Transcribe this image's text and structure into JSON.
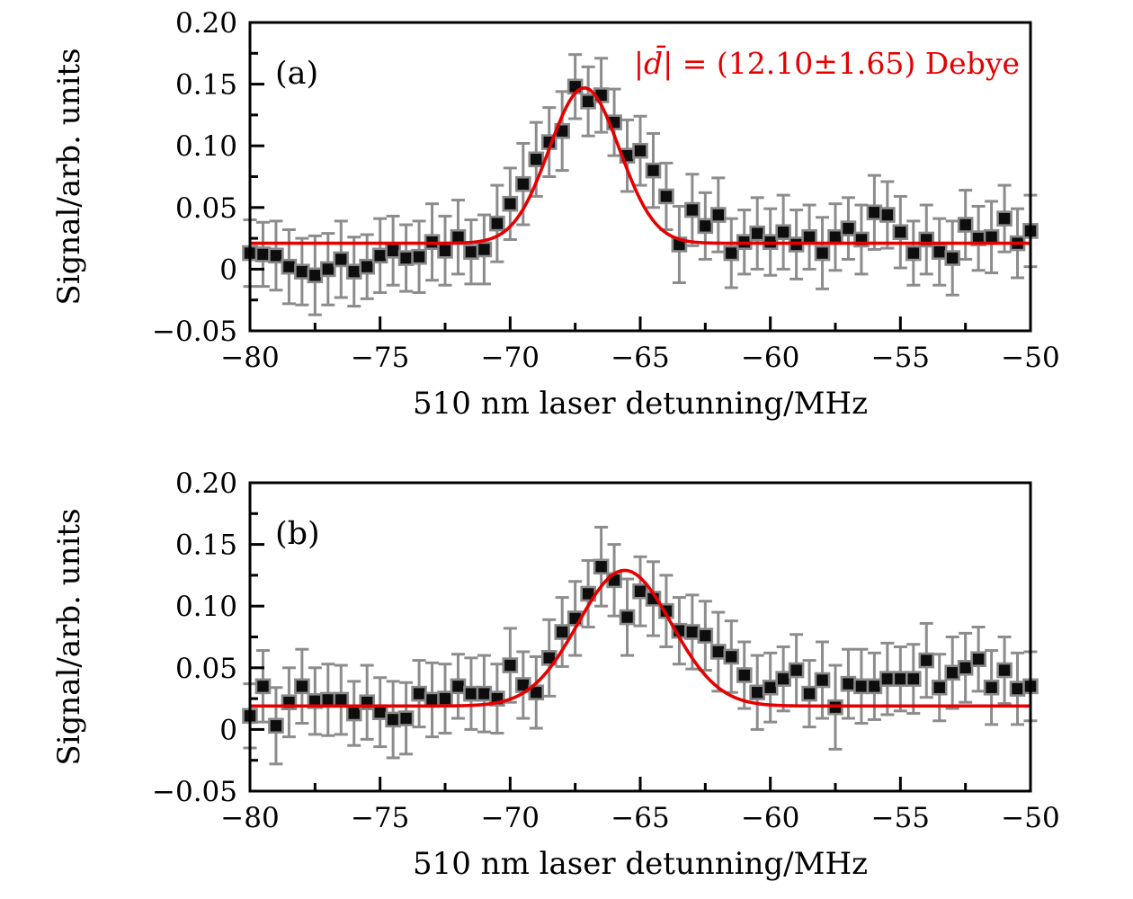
{
  "figure": {
    "background": "#ffffff",
    "colors": {
      "fit_red": "#e60000",
      "annotation_red": "#e60000",
      "marker_fill": "#0d0d0d",
      "marker_edge": "#8a8a8a",
      "error_bar": "#8c8c8c",
      "axis": "#000000",
      "tick_text": "#000000"
    }
  },
  "chart_data": [
    {
      "type": "scatter",
      "panel_key": "a",
      "panel_label": "(a)",
      "xlabel": "510 nm laser detunning/MHz",
      "ylabel": "Signal/arb. units",
      "xlim": [
        -80,
        -50
      ],
      "ylim": [
        -0.05,
        0.2
      ],
      "x_tick_values": [
        -80,
        -75,
        -70,
        -65,
        -60,
        -55,
        -50
      ],
      "x_tick_labels": [
        "−80",
        "−75",
        "−70",
        "−65",
        "−60",
        "−55",
        "−50"
      ],
      "x_minor_tick_values": [
        -77.5,
        -72.5,
        -67.5,
        -62.5,
        -57.5,
        -52.5
      ],
      "y_tick_values": [
        0.2,
        0.15,
        0.1,
        0.05,
        0,
        -0.05
      ],
      "y_tick_labels": [
        "0.20",
        "0.15",
        "0.10",
        "0.05",
        "0",
        "−0.05"
      ],
      "y_minor_tick_values": [
        0.175,
        0.125,
        0.075,
        0.025,
        -0.025
      ],
      "grid": false,
      "annotation": {
        "open": "|",
        "symbol": "d̄",
        "rest": "| = (12.10±1.65) Debye"
      },
      "fit": {
        "shape": "gaussian",
        "baseline": 0.021,
        "amplitude": 0.126,
        "center": -67.15,
        "sigma": 1.35
      },
      "series": {
        "name": "signal",
        "x": [
          -80,
          -79.5,
          -79,
          -78.5,
          -78,
          -77.5,
          -77,
          -76.5,
          -76,
          -75.5,
          -75,
          -74.5,
          -74,
          -73.5,
          -73,
          -72.5,
          -72,
          -71.5,
          -71,
          -70.5,
          -70,
          -69.5,
          -69,
          -68.5,
          -68,
          -67.5,
          -67,
          -66.5,
          -66,
          -65.5,
          -65,
          -64.5,
          -64,
          -63.5,
          -63,
          -62.5,
          -62,
          -61.5,
          -61,
          -60.5,
          -60,
          -59.5,
          -59,
          -58.5,
          -58,
          -57.5,
          -57,
          -56.5,
          -56,
          -55.5,
          -55,
          -54.5,
          -54,
          -53.5,
          -53,
          -52.5,
          -52,
          -51.5,
          -51,
          -50.5,
          -50
        ],
        "y": [
          0.013,
          0.012,
          0.011,
          0.002,
          -0.002,
          -0.005,
          0.0,
          0.008,
          -0.002,
          0.002,
          0.011,
          0.015,
          0.009,
          0.01,
          0.022,
          0.015,
          0.026,
          0.014,
          0.016,
          0.037,
          0.053,
          0.069,
          0.089,
          0.103,
          0.112,
          0.148,
          0.136,
          0.141,
          0.119,
          0.092,
          0.096,
          0.08,
          0.059,
          0.02,
          0.048,
          0.035,
          0.044,
          0.013,
          0.022,
          0.029,
          0.022,
          0.03,
          0.02,
          0.026,
          0.013,
          0.026,
          0.033,
          0.024,
          0.046,
          0.044,
          0.03,
          0.013,
          0.024,
          0.014,
          0.009,
          0.036,
          0.025,
          0.026,
          0.041,
          0.021,
          0.031
        ],
        "yerr": [
          0.027,
          0.026,
          0.028,
          0.03,
          0.027,
          0.032,
          0.029,
          0.031,
          0.028,
          0.026,
          0.03,
          0.028,
          0.027,
          0.029,
          0.031,
          0.028,
          0.03,
          0.026,
          0.028,
          0.031,
          0.029,
          0.033,
          0.03,
          0.028,
          0.032,
          0.026,
          0.028,
          0.03,
          0.027,
          0.029,
          0.028,
          0.03,
          0.027,
          0.031,
          0.029,
          0.027,
          0.03,
          0.028,
          0.026,
          0.029,
          0.027,
          0.03,
          0.028,
          0.026,
          0.029,
          0.027,
          0.025,
          0.028,
          0.03,
          0.027,
          0.029,
          0.026,
          0.028,
          0.027,
          0.03,
          0.028,
          0.026,
          0.029,
          0.027,
          0.028,
          0.029
        ]
      }
    },
    {
      "type": "scatter",
      "panel_key": "b",
      "panel_label": "(b)",
      "xlabel": "510 nm laser detunning/MHz",
      "ylabel": "Signal/arb. units",
      "xlim": [
        -80,
        -50
      ],
      "ylim": [
        -0.05,
        0.2
      ],
      "x_tick_values": [
        -80,
        -75,
        -70,
        -65,
        -60,
        -55,
        -50
      ],
      "x_tick_labels": [
        "−80",
        "−75",
        "−70",
        "−65",
        "−60",
        "−55",
        "−50"
      ],
      "x_minor_tick_values": [
        -77.5,
        -72.5,
        -67.5,
        -62.5,
        -57.5,
        -52.5
      ],
      "y_tick_values": [
        0.2,
        0.15,
        0.1,
        0.05,
        0,
        -0.05
      ],
      "y_tick_labels": [
        "0.20",
        "0.15",
        "0.10",
        "0.05",
        "0",
        "−0.05"
      ],
      "y_minor_tick_values": [
        0.175,
        0.125,
        0.075,
        0.025,
        -0.025
      ],
      "grid": false,
      "annotation": null,
      "fit": {
        "shape": "gaussian",
        "baseline": 0.019,
        "amplitude": 0.11,
        "center": -65.6,
        "sigma": 1.8
      },
      "series": {
        "name": "signal",
        "x": [
          -80,
          -79.5,
          -79,
          -78.5,
          -78,
          -77.5,
          -77,
          -76.5,
          -76,
          -75.5,
          -75,
          -74.5,
          -74,
          -73.5,
          -73,
          -72.5,
          -72,
          -71.5,
          -71,
          -70.5,
          -70,
          -69.5,
          -69,
          -68.5,
          -68,
          -67.5,
          -67,
          -66.5,
          -66,
          -65.5,
          -65,
          -64.5,
          -64,
          -63.5,
          -63,
          -62.5,
          -62,
          -61.5,
          -61,
          -60.5,
          -60,
          -59.5,
          -59,
          -58.5,
          -58,
          -57.5,
          -57,
          -56.5,
          -56,
          -55.5,
          -55,
          -54.5,
          -54,
          -53.5,
          -53,
          -52.5,
          -52,
          -51.5,
          -51,
          -50.5,
          -50
        ],
        "y": [
          0.011,
          0.035,
          0.003,
          0.022,
          0.035,
          0.023,
          0.024,
          0.024,
          0.013,
          0.022,
          0.014,
          0.008,
          0.009,
          0.029,
          0.024,
          0.025,
          0.035,
          0.029,
          0.029,
          0.025,
          0.052,
          0.036,
          0.03,
          0.058,
          0.079,
          0.09,
          0.11,
          0.132,
          0.121,
          0.091,
          0.112,
          0.106,
          0.096,
          0.08,
          0.079,
          0.076,
          0.063,
          0.059,
          0.044,
          0.03,
          0.034,
          0.041,
          0.048,
          0.029,
          0.04,
          0.018,
          0.037,
          0.035,
          0.035,
          0.041,
          0.041,
          0.041,
          0.056,
          0.034,
          0.046,
          0.05,
          0.057,
          0.034,
          0.048,
          0.033,
          0.035
        ],
        "yerr": [
          0.026,
          0.029,
          0.031,
          0.028,
          0.03,
          0.027,
          0.029,
          0.028,
          0.026,
          0.03,
          0.028,
          0.031,
          0.029,
          0.027,
          0.03,
          0.028,
          0.026,
          0.029,
          0.031,
          0.028,
          0.03,
          0.027,
          0.029,
          0.031,
          0.028,
          0.03,
          0.027,
          0.032,
          0.029,
          0.031,
          0.028,
          0.03,
          0.029,
          0.027,
          0.03,
          0.028,
          0.032,
          0.029,
          0.027,
          0.03,
          0.028,
          0.026,
          0.029,
          0.027,
          0.031,
          0.034,
          0.028,
          0.03,
          0.027,
          0.029,
          0.026,
          0.028,
          0.03,
          0.027,
          0.029,
          0.028,
          0.026,
          0.03,
          0.027,
          0.029,
          0.028
        ]
      }
    }
  ]
}
